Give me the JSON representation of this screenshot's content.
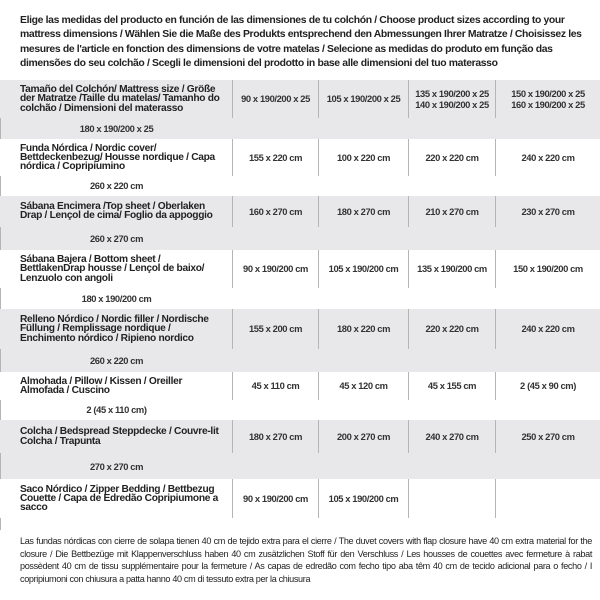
{
  "intro": "Elige las medidas del producto en función de las dimensiones de tu colchón / Choose product sizes according to your mattress dimensions / Wählen Sie die Maße des Produkts entsprechend den Abmessungen Ihrer Matratze / Choisissez les mesures de l'article en fonction des dimensions de votre matelas / Selecione as medidas do produto em função das dimensões do seu colchão / Scegli le dimensioni del prodotto in base alle dimensioni del tuo materasso",
  "header": {
    "label": "Tamaño del Colchón/ Mattress size / Größe der Matratze /Taille du matelas/ Tamanho do colchão / Dimensioni del materasso",
    "cols": [
      [
        "90 x 190/200 x 25"
      ],
      [
        "105 x 190/200 x 25"
      ],
      [
        "135 x 190/200 x 25",
        "140 x 190/200 x 25"
      ],
      [
        "150 x 190/200 x 25",
        "160 x 190/200 x 25"
      ],
      [
        "180 x 190/200 x 25"
      ]
    ]
  },
  "rows": [
    {
      "label": "Funda Nórdica /  Nordic cover/ Bettdeckenbezug/ Housse nordique  / Capa nórdica / Copripiumino",
      "values": [
        "155 x 220 cm",
        "100 x 220 cm",
        "220 x 220 cm",
        "240 x 220 cm",
        "260 x 220 cm"
      ]
    },
    {
      "label": "Sábana Encimera /Top sheet / Oberlaken Drap / Lençol de cima/ Foglio da appoggio",
      "values": [
        "160 x 270 cm",
        "180 x 270 cm",
        "210 x 270 cm",
        "230 x 270 cm",
        "260 x 270 cm"
      ]
    },
    {
      "label": "Sábana Bajera / Bottom sheet / BettlakenDrap housse / Lençol de baixo/ Lenzuolo con angoli",
      "values": [
        "90 x 190/200 cm",
        "105 x 190/200 cm",
        "135 x 190/200 cm",
        "150 x 190/200 cm",
        "180 x 190/200 cm"
      ]
    },
    {
      "label": "Relleno Nórdico / Nordic filler / Nordische Füllung / Remplissage nordique / Enchimento nórdico / Ripieno nordico",
      "values": [
        "155 x 200 cm",
        "180 x 220 cm",
        "220 x 220 cm",
        "240 x 220 cm",
        "260 x 220 cm"
      ]
    },
    {
      "label": "Almohada  / Pillow / Kissen / Oreiller Almofada / Cuscino",
      "values": [
        "45 x 110 cm",
        "45 x 120 cm",
        "45 x 155 cm",
        "2 (45 x 90 cm)",
        "2 (45 x 110 cm)"
      ]
    },
    {
      "label": "Colcha / Bedspread Steppdecke / Couvre-lit Colcha / Trapunta",
      "values": [
        "180 x 270 cm",
        "200 x 270 cm",
        "240 x 270 cm",
        "250 x 270 cm",
        "270 x 270 cm"
      ]
    },
    {
      "label": "Saco Nórdico / Zipper Bedding / Bettbezug Couette  / Capa de Edredão Copripiumone a sacco",
      "values": [
        "90 x 190/200 cm",
        "105 x 190/200 cm",
        "",
        "",
        ""
      ]
    }
  ],
  "footnote": "Las fundas nórdicas con cierre de solapa tienen 40 cm de tejido extra para el cierre  / The duvet covers with flap closure have 40 cm extra material for the closure / Die Bettbezüge mit Klappenverschluss haben 40 cm zusätzlichen Stoff für den Verschluss / Les housses de couettes avec fermeture à rabat possèdent 40 cm de tissu supplémentaire pour la fermeture / As capas de edredão com fecho tipo aba têm 40 cm de tecido adicional para o fecho / I copripiumoni con chiusura a patta hanno 40 cm di tessuto extra per la chiusura",
  "colors": {
    "row_shade": "#e8e8ea",
    "divider": "#b5b5b5",
    "text": "#222222"
  }
}
